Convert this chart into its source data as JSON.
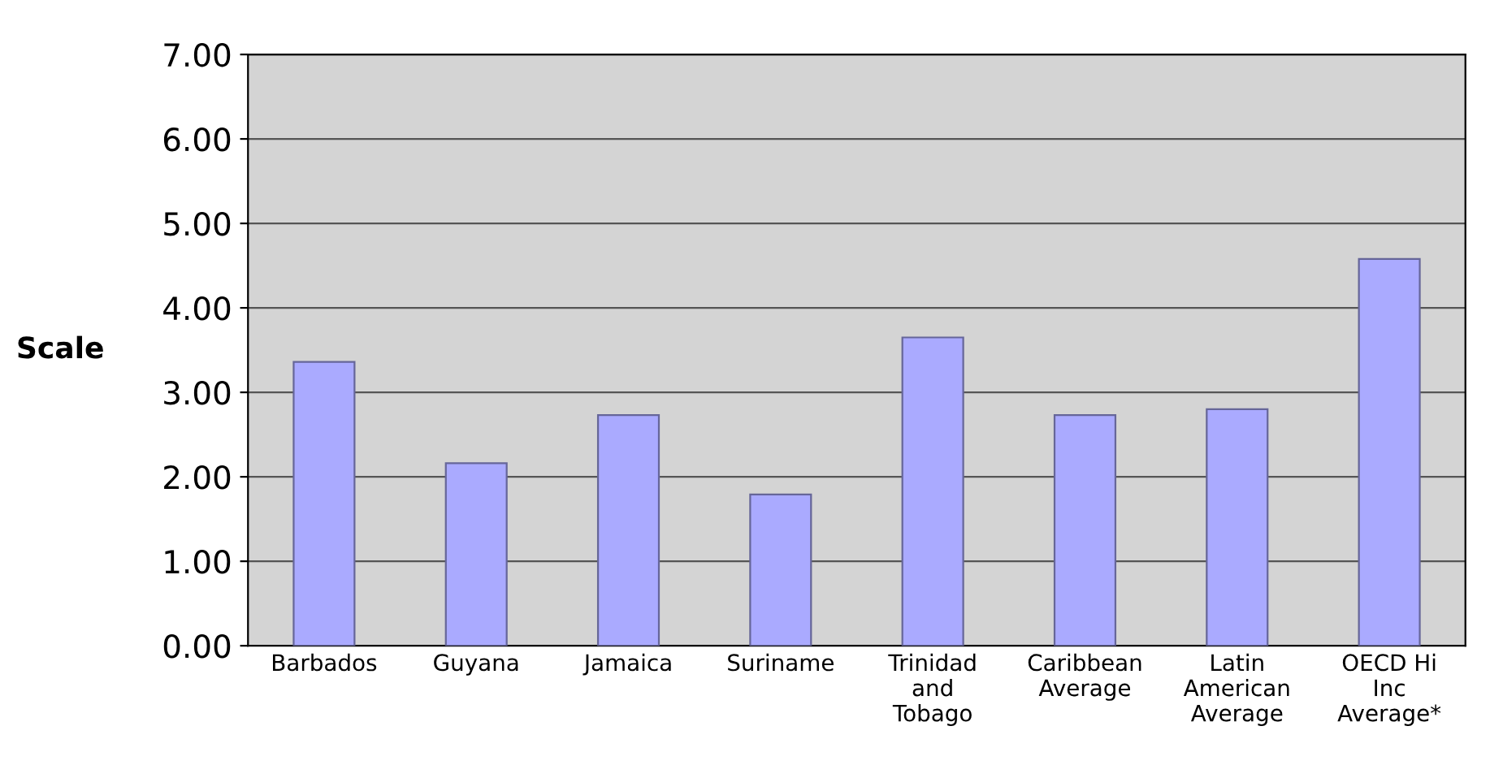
{
  "chart_data": {
    "type": "bar",
    "ylabel": "Scale",
    "categories": [
      "Barbados",
      "Guyana",
      "Jamaica",
      "Suriname",
      "Trinidad and Tobago",
      "Caribbean Average",
      "Latin American Average",
      "OECD Hi Inc Average*"
    ],
    "values": [
      3.36,
      2.16,
      2.73,
      1.79,
      3.65,
      2.73,
      2.8,
      4.58
    ],
    "color": "#aaaaff",
    "ylim": [
      0,
      7
    ],
    "yticks": [
      {
        "value": 0,
        "label": "0.00"
      },
      {
        "value": 1,
        "label": "1.00"
      },
      {
        "value": 2,
        "label": "2.00"
      },
      {
        "value": 3,
        "label": "3.00"
      },
      {
        "value": 4,
        "label": "4.00"
      },
      {
        "value": 5,
        "label": "5.00"
      },
      {
        "value": 6,
        "label": "6.00"
      },
      {
        "value": 7,
        "label": "7.00"
      }
    ],
    "grid": "y",
    "legend": false
  }
}
